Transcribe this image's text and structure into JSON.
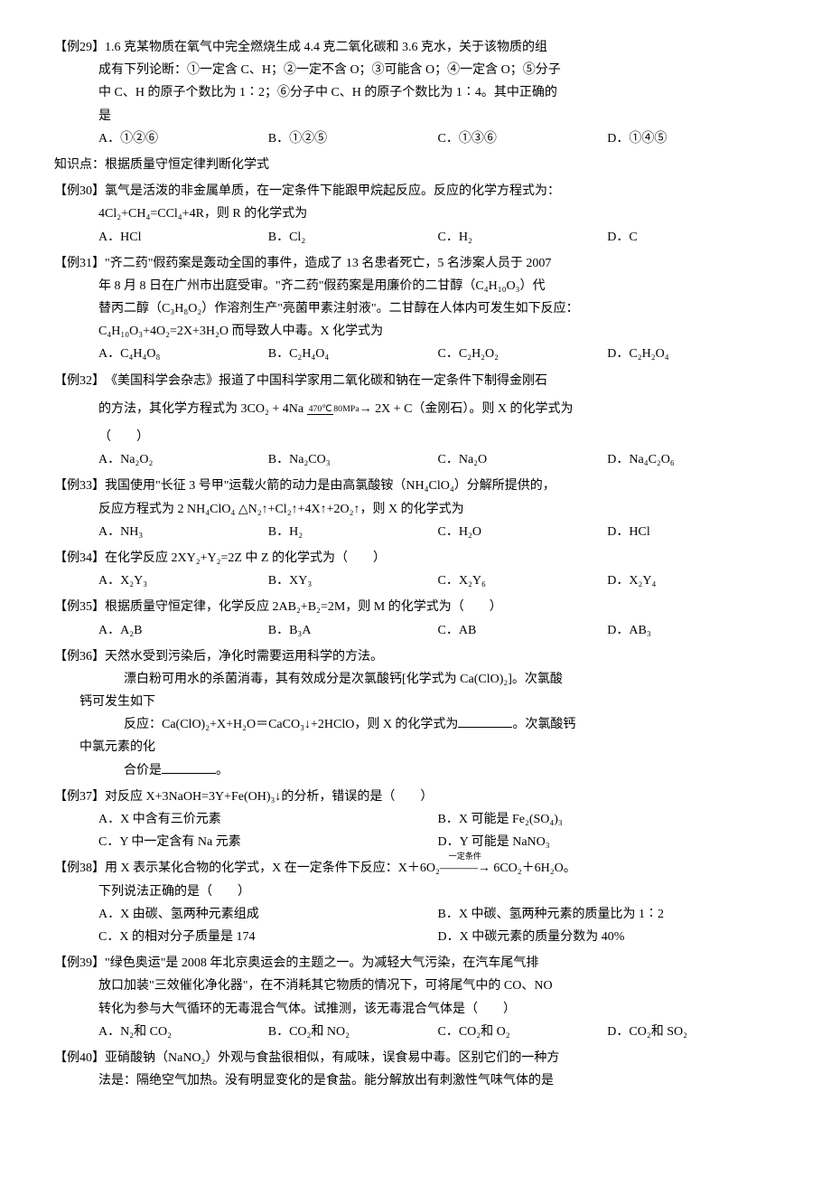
{
  "knowledge_point": "知识点：根据质量守恒定律判断化学式",
  "problems": [
    {
      "label": "【例29】",
      "text_lines": [
        "1.6 克某物质在氧气中完全燃烧生成 4.4 克二氧化碳和 3.6 克水，关于该物质的组",
        "成有下列论断：①一定含 C、H；②一定不含 O；③可能含 O；④一定含 O；⑤分子",
        "中 C、H 的原子个数比为 1∶2；⑥分子中 C、H 的原子个数比为 1∶4。其中正确的",
        "是"
      ],
      "options": {
        "A": "①②⑥",
        "B": "①②⑤",
        "C": "①③⑥",
        "D": "①④⑤"
      },
      "layout": "four-col"
    },
    {
      "label": "【例30】",
      "text_lines": [
        "氯气是活泼的非金属单质，在一定条件下能跟甲烷起反应。反应的化学方程式为：",
        "4Cl₂+CH₄=CCl₄+4R，则 R 的化学式为"
      ],
      "options": {
        "A": "HCl",
        "B": "Cl₂",
        "C": "H₂",
        "D": "C"
      },
      "layout": "four-col"
    },
    {
      "label": "【例31】",
      "text_lines": [
        "\"齐二药\"假药案是轰动全国的事件，造成了 13 名患者死亡，5 名涉案人员于 2007",
        "年 8 月 8 日在广州市出庭受审。\"齐二药\"假药案是用廉价的二甘醇（C₄H₁₀O₃）代",
        "替丙二醇（C₃H₈O₂）作溶剂生产\"亮菌甲素注射液\"。二甘醇在人体内可发生如下反应：",
        "C₄H₁₀O₃+4O₂=2X+3H₂O 而导致人中毒。X 化学式为"
      ],
      "options": {
        "A": "C₄H₄O₈",
        "B": "C₂H₄O₄",
        "C": "C₂H₂O₂",
        "D": "C₂H₂O₄"
      },
      "layout": "four-col"
    },
    {
      "label": "【例32】",
      "text_lines": [
        "《美国科学会杂志》报道了中国科学家用二氧化碳和钠在一定条件下制得金刚石"
      ],
      "equation_line": "的方法，其化学方程式为",
      "equation": {
        "lhs": "3CO₂ + 4Na",
        "cond_top": "470℃",
        "cond_bot": "80MPa",
        "rhs": "2X + C（金刚石）。则 X 的化学式为"
      },
      "paren": "（　　）",
      "options": {
        "A": "Na₂O₂",
        "B": "Na₂CO₃",
        "C": "Na₂O",
        "D": "Na₄C₂O₆"
      },
      "layout": "four-col"
    },
    {
      "label": "【例33】",
      "text_lines": [
        "我国使用\"长征 3 号甲\"运载火箭的动力是由高氯酸铵（NH₄ClO₄）分解所提供的，",
        "反应方程式为 2 NH₄ClO₄ △N₂↑+Cl₂↑+4X↑+2O₂↑，则 X 的化学式为"
      ],
      "options": {
        "A": "NH₃",
        "B": "H₂",
        "C": "H₂O",
        "D": "HCl"
      },
      "layout": "four-col"
    },
    {
      "label": "【例34】",
      "text_lines": [
        "在化学反应 2XY₂+Y₂=2Z 中 Z 的化学式为（　　）"
      ],
      "options": {
        "A": "X₂Y₃",
        "B": "XY₃",
        "C": "X₂Y₆",
        "D": "X₂Y₄"
      },
      "layout": "four-col"
    },
    {
      "label": "【例35】",
      "text_lines": [
        "根据质量守恒定律，化学反应 2AB₂+B₂=2M，则 M 的化学式为（　　）"
      ],
      "options": {
        "A": "A₂B",
        "B": "B₃A",
        "C": "AB",
        "D": "AB₃"
      },
      "layout": "four-col"
    },
    {
      "label": "【例36】",
      "body_lines": [
        {
          "type": "first",
          "text": "天然水受到污染后，净化时需要运用科学的方法。"
        },
        {
          "type": "cont",
          "text": "　　漂白粉可用水的杀菌消毒，其有效成分是次氯酸钙[化学式为 Ca(ClO)₂]。次氯酸"
        },
        {
          "type": "hang",
          "text": "钙可发生如下"
        },
        {
          "type": "cont",
          "text": "　　反应：Ca(ClO)₂+X+H₂O＝CaCO₃↓+2HClO，则 X 的化学式为"
        },
        {
          "type": "blank_suffix",
          "text": "。次氯酸钙"
        },
        {
          "type": "hang",
          "text": "中氯元素的化"
        },
        {
          "type": "cont",
          "text": "　　合价是"
        },
        {
          "type": "blank_end",
          "text": "。"
        }
      ]
    },
    {
      "label": "【例37】",
      "text_lines": [
        "对反应 X+3NaOH=3Y+Fe(OH)₃↓的分析，错误的是（　　）"
      ],
      "options": {
        "A": "X 中含有三价元素",
        "B": "X 可能是 Fe₂(SO₄)₃",
        "C": "Y 中一定含有 Na 元素",
        "D": "Y 可能是 NaNO₃"
      },
      "layout": "two-col"
    },
    {
      "label": "【例38】",
      "text_lines": [
        "用 X 表示某化合物的化学式，X 在一定条件下反应：X＋6O₂——→ 6CO₂＋6H₂O。",
        "下列说法正确的是（　　）"
      ],
      "cond_over_arrow": "一定条件",
      "options": {
        "A": "X 由碳、氢两种元素组成",
        "B": "X 中碳、氢两种元素的质量比为 1∶2",
        "C": "X 的相对分子质量是 174",
        "D": "X 中碳元素的质量分数为 40%"
      },
      "layout": "two-col"
    },
    {
      "label": "【例39】",
      "text_lines": [
        "\"绿色奥运\"是 2008 年北京奥运会的主题之一。为减轻大气污染，在汽车尾气排",
        "放口加装\"三效催化净化器\"，在不消耗其它物质的情况下，可将尾气中的 CO、NO",
        "转化为参与大气循环的无毒混合气体。试推测，该无毒混合气体是（　　）"
      ],
      "options": {
        "A": "N₂和 CO₂",
        "B": "CO₂和 NO₂",
        "C": "CO₂和 O₂",
        "D": "CO₂和 SO₂"
      },
      "layout": "four-col"
    },
    {
      "label": "【例40】",
      "text_lines": [
        "亚硝酸钠（NaNO₂）外观与食盐很相似，有咸味，误食易中毒。区别它们的一种方",
        "法是：隔绝空气加热。没有明显变化的是食盐。能分解放出有刺激性气味气体的是"
      ]
    }
  ]
}
